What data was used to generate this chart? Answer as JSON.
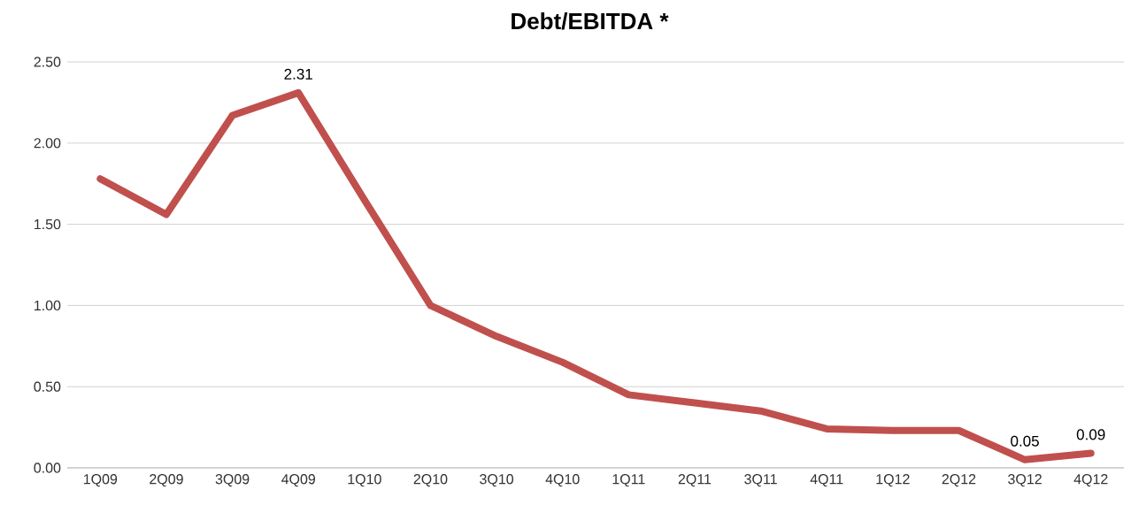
{
  "chart_data": {
    "type": "line",
    "title": "Debt/EBITDA *",
    "categories": [
      "1Q09",
      "2Q09",
      "3Q09",
      "4Q09",
      "1Q10",
      "2Q10",
      "3Q10",
      "4Q10",
      "1Q11",
      "2Q11",
      "3Q11",
      "4Q11",
      "1Q12",
      "2Q12",
      "3Q12",
      "4Q12"
    ],
    "values": [
      1.78,
      1.56,
      2.17,
      2.31,
      1.65,
      1.0,
      0.81,
      0.65,
      0.45,
      0.4,
      0.35,
      0.24,
      0.23,
      0.23,
      0.05,
      0.09
    ],
    "value_labels": [
      null,
      null,
      null,
      "2.31",
      null,
      null,
      null,
      null,
      null,
      null,
      null,
      null,
      null,
      null,
      "0.05",
      "0.09"
    ],
    "color": "#c0504d",
    "marker": "none",
    "line_style": "solid",
    "grid": "y",
    "ylim": [
      0,
      2.5
    ],
    "yticks": [
      {
        "value": 0,
        "label": "0.00"
      },
      {
        "value": 0.5,
        "label": "0.50"
      },
      {
        "value": 1,
        "label": "1.00"
      },
      {
        "value": 1.5,
        "label": "1.50"
      },
      {
        "value": 2,
        "label": "2.00"
      },
      {
        "value": 2.5,
        "label": "2.50"
      }
    ]
  }
}
